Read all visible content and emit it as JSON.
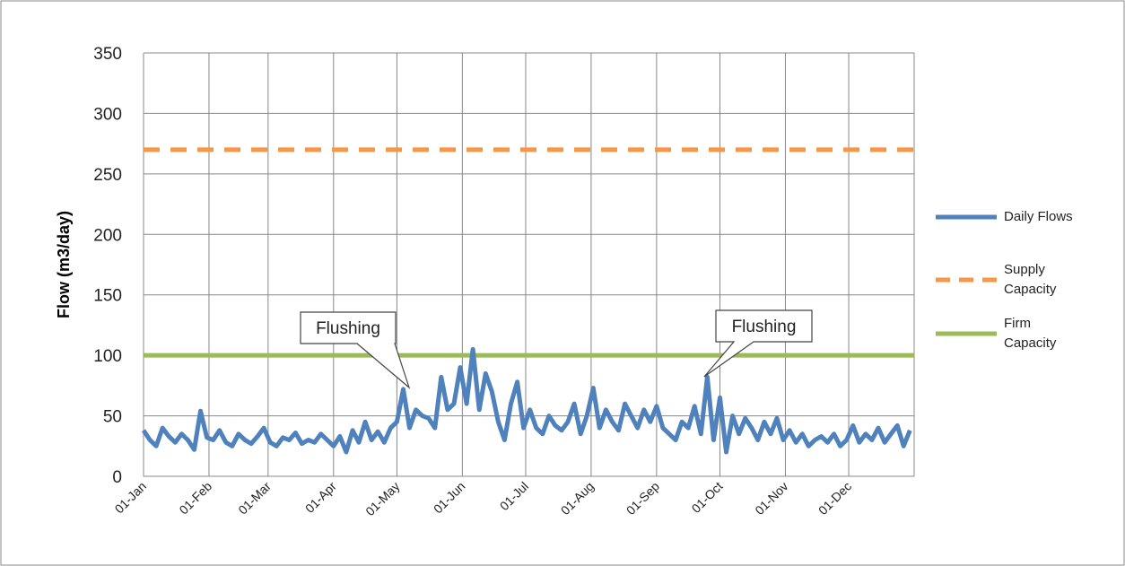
{
  "chart_data": {
    "type": "line",
    "ylabel": "Flow (m3/day)",
    "xlim": [
      0,
      365
    ],
    "ylim": [
      0,
      350
    ],
    "yticks": [
      0,
      50,
      100,
      150,
      200,
      250,
      300,
      350
    ],
    "xticks": [
      {
        "value": 0,
        "label": "01-Jan"
      },
      {
        "value": 31,
        "label": "01-Feb"
      },
      {
        "value": 59,
        "label": "01-Mar"
      },
      {
        "value": 90,
        "label": "01-Apr"
      },
      {
        "value": 120,
        "label": "01-May"
      },
      {
        "value": 151,
        "label": "01-Jun"
      },
      {
        "value": 181,
        "label": "01-Jul"
      },
      {
        "value": 212,
        "label": "01-Aug"
      },
      {
        "value": 243,
        "label": "01-Sep"
      },
      {
        "value": 273,
        "label": "01-Oct"
      },
      {
        "value": 304,
        "label": "01-Nov"
      },
      {
        "value": 334,
        "label": "01-Dec"
      }
    ],
    "grid": true,
    "legend": "right",
    "series": [
      {
        "name": "Daily Flows",
        "color": "#4f81bd",
        "dash": false,
        "x": [
          0,
          3,
          6,
          9,
          12,
          15,
          18,
          21,
          24,
          27,
          30,
          33,
          36,
          39,
          42,
          45,
          48,
          51,
          54,
          57,
          60,
          63,
          66,
          69,
          72,
          75,
          78,
          81,
          84,
          87,
          90,
          93,
          96,
          99,
          102,
          105,
          108,
          111,
          114,
          117,
          120,
          123,
          126,
          129,
          132,
          135,
          138,
          141,
          144,
          147,
          150,
          153,
          156,
          159,
          162,
          165,
          168,
          171,
          174,
          177,
          180,
          183,
          186,
          189,
          192,
          195,
          198,
          201,
          204,
          207,
          210,
          213,
          216,
          219,
          222,
          225,
          228,
          231,
          234,
          237,
          240,
          243,
          246,
          249,
          252,
          255,
          258,
          261,
          264,
          267,
          270,
          273,
          276,
          279,
          282,
          285,
          288,
          291,
          294,
          297,
          300,
          303,
          306,
          309,
          312,
          315,
          318,
          321,
          324,
          327,
          330,
          333,
          336,
          339,
          342,
          345,
          348,
          351,
          354,
          357,
          360,
          363
        ],
        "values": [
          38,
          30,
          25,
          40,
          33,
          28,
          35,
          30,
          22,
          54,
          32,
          30,
          38,
          28,
          25,
          35,
          30,
          27,
          33,
          40,
          28,
          25,
          32,
          30,
          36,
          27,
          30,
          28,
          35,
          30,
          25,
          33,
          20,
          38,
          28,
          45,
          30,
          37,
          28,
          40,
          45,
          72,
          40,
          55,
          50,
          48,
          40,
          82,
          55,
          60,
          90,
          60,
          105,
          55,
          85,
          70,
          45,
          30,
          60,
          78,
          40,
          55,
          40,
          35,
          50,
          42,
          38,
          45,
          60,
          35,
          50,
          73,
          40,
          55,
          45,
          38,
          60,
          50,
          40,
          55,
          45,
          58,
          40,
          35,
          30,
          45,
          40,
          58,
          35,
          82,
          30,
          65,
          20,
          50,
          35,
          48,
          40,
          30,
          45,
          35,
          48,
          30,
          38,
          28,
          35,
          25,
          30,
          33,
          28,
          35,
          25,
          30,
          42,
          28,
          35,
          30,
          40,
          28,
          35,
          42,
          25,
          38
        ]
      },
      {
        "name": "Supply Capacity",
        "color": "#f79646",
        "dash": true,
        "x": [
          0,
          365
        ],
        "values": [
          270,
          270
        ]
      },
      {
        "name": "Firm Capacity",
        "color": "#9bbb59",
        "dash": false,
        "x": [
          0,
          365
        ],
        "values": [
          100,
          100
        ]
      }
    ],
    "annotations": [
      {
        "text": "Flushing"
      },
      {
        "text": "Flushing"
      }
    ]
  }
}
